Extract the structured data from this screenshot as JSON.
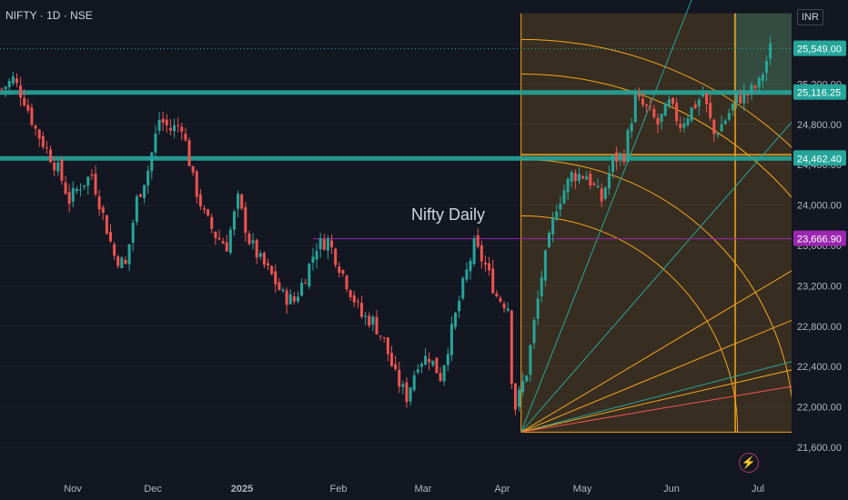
{
  "header": {
    "symbol": "NIFTY · 1D · NSE",
    "currency": "INR"
  },
  "annotation": {
    "label": "Nifty Daily"
  },
  "colors": {
    "background": "#131722",
    "up": "#26a69a",
    "down": "#ef5350",
    "fib": "#f7a51c",
    "grid": "#1e222d"
  },
  "chart_data": {
    "type": "candlestick",
    "title": "",
    "xlabel": "",
    "ylabel": "",
    "ylim": [
      21500,
      25900
    ],
    "x_ticks": [
      "Nov",
      "Dec",
      "2025",
      "Feb",
      "Mar",
      "Apr",
      "May",
      "Jun",
      "Jul"
    ],
    "y_ticks": [
      21600,
      22000,
      22400,
      22800,
      23200,
      23600,
      24000,
      24400,
      24800,
      25200,
      25600
    ],
    "y_tick_labels": [
      "21,600.00",
      "22,000.00",
      "22,400.00",
      "22,800.00",
      "23,200.00",
      "23,600.00",
      "24,000.00",
      "24,400.00",
      "24,800.00",
      "25,200.00",
      "25,600.00"
    ],
    "price_tags": [
      {
        "value": 25549.0,
        "label": "25,549.00",
        "color": "#26a69a"
      },
      {
        "value": 25116.25,
        "label": "25,116.25",
        "color": "#26a69a"
      },
      {
        "value": 24462.4,
        "label": "24,462.40",
        "color": "#26a69a"
      },
      {
        "value": 23666.9,
        "label": "23,666.90",
        "color": "#9c27b0"
      }
    ],
    "horizontal_levels": [
      25116.25,
      24462.4,
      23666.9
    ],
    "close_path": [
      [
        0,
        25150
      ],
      [
        3,
        25250
      ],
      [
        6,
        25050
      ],
      [
        9,
        24750
      ],
      [
        12,
        24550
      ],
      [
        15,
        24350
      ],
      [
        18,
        24050
      ],
      [
        21,
        24200
      ],
      [
        24,
        24300
      ],
      [
        27,
        23900
      ],
      [
        30,
        23500
      ],
      [
        33,
        23400
      ],
      [
        36,
        24050
      ],
      [
        39,
        24350
      ],
      [
        42,
        24850
      ],
      [
        45,
        24750
      ],
      [
        48,
        24800
      ],
      [
        51,
        24250
      ],
      [
        54,
        23900
      ],
      [
        57,
        23700
      ],
      [
        60,
        23600
      ],
      [
        63,
        24050
      ],
      [
        66,
        23650
      ],
      [
        69,
        23450
      ],
      [
        72,
        23300
      ],
      [
        75,
        23100
      ],
      [
        78,
        23050
      ],
      [
        81,
        23300
      ],
      [
        84,
        23600
      ],
      [
        87,
        23650
      ],
      [
        90,
        23400
      ],
      [
        93,
        23150
      ],
      [
        96,
        22900
      ],
      [
        99,
        22850
      ],
      [
        102,
        22650
      ],
      [
        105,
        22300
      ],
      [
        108,
        22100
      ],
      [
        111,
        22450
      ],
      [
        114,
        22500
      ],
      [
        117,
        22300
      ],
      [
        120,
        22750
      ],
      [
        123,
        23200
      ],
      [
        126,
        23600
      ],
      [
        129,
        23400
      ],
      [
        132,
        23100
      ],
      [
        135,
        23000
      ],
      [
        136,
        22300
      ],
      [
        137,
        22000
      ],
      [
        140,
        22350
      ],
      [
        144,
        23300
      ],
      [
        148,
        24000
      ],
      [
        152,
        24300
      ],
      [
        156,
        24300
      ],
      [
        160,
        24050
      ],
      [
        163,
        24450
      ],
      [
        166,
        24500
      ],
      [
        169,
        25050
      ],
      [
        172,
        24950
      ],
      [
        175,
        24800
      ],
      [
        178,
        25000
      ],
      [
        181,
        24800
      ],
      [
        184,
        24950
      ],
      [
        187,
        25100
      ],
      [
        190,
        24700
      ],
      [
        193,
        24850
      ],
      [
        196,
        25050
      ],
      [
        199,
        25100
      ],
      [
        202,
        25200
      ],
      [
        205,
        25549
      ]
    ]
  }
}
